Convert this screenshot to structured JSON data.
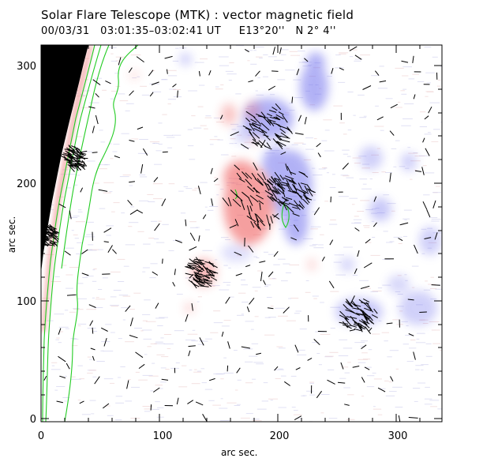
{
  "title": "Solar Flare Telescope (MTK) : vector magnetic field",
  "subtitle": "00/03/31   03:01:35–03:02:41 UT     E13°20''   N 2° 4''",
  "axes": {
    "x_label": "arc sec.",
    "y_label": "arc sec.",
    "x_ticks": [
      "0",
      "100",
      "200",
      "300"
    ],
    "y_ticks": [
      "0",
      "100",
      "200",
      "300"
    ]
  },
  "colors": {
    "positive_field": "#f06464",
    "negative_field": "#6b6bf0",
    "contour": "#22cc22",
    "limb": "#000000",
    "vectors": "#000000"
  },
  "chart_data": {
    "type": "heatmap",
    "xlim": [
      0,
      340
    ],
    "ylim": [
      0,
      320
    ],
    "field_map": "line-of-sight magnetogram (red = positive, blue = negative) with transverse-field vectors",
    "grid": false
  }
}
